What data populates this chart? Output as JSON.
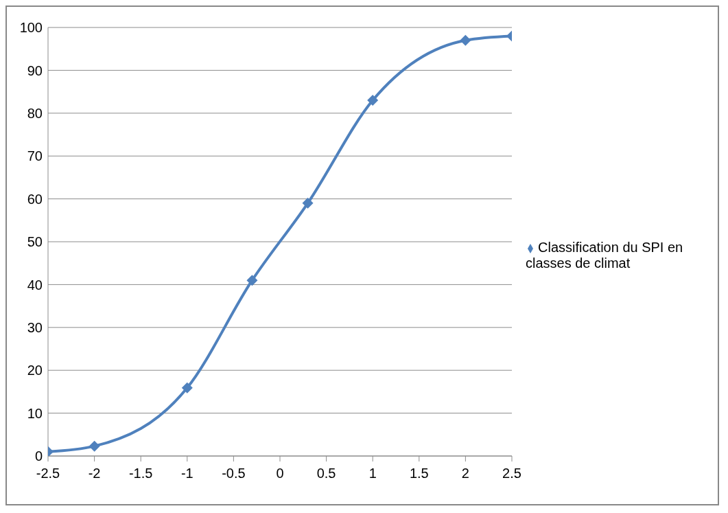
{
  "chart_data": {
    "type": "line",
    "x": [
      -2.5,
      -2,
      -1,
      -0.3,
      0.3,
      1,
      2,
      2.5
    ],
    "series": [
      {
        "name": "Classification du SPI en classes de climat",
        "color": "#4f81bd",
        "values": [
          1,
          2.3,
          15.9,
          41,
          59,
          83,
          97,
          98
        ]
      }
    ],
    "xlim": [
      -2.5,
      2.5
    ],
    "xticks": [
      -2.5,
      -2,
      -1.5,
      -1,
      -0.5,
      0,
      0.5,
      1,
      1.5,
      2,
      2.5
    ],
    "ylim": [
      0,
      100
    ],
    "yticks": [
      0,
      10,
      20,
      30,
      40,
      50,
      60,
      70,
      80,
      90,
      100
    ],
    "grid": "y",
    "legend": "right",
    "marker": "diamond",
    "line_style": "solid"
  }
}
